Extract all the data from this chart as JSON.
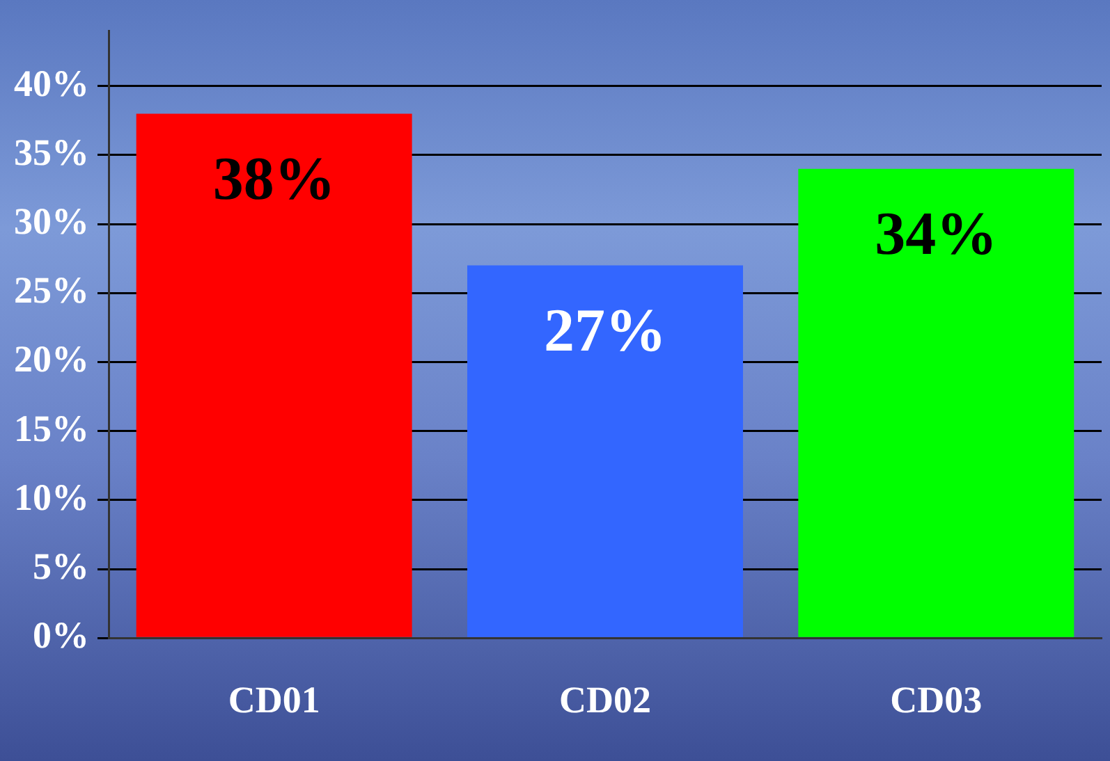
{
  "chart_data": {
    "type": "bar",
    "categories": [
      "CD01",
      "CD02",
      "CD03"
    ],
    "values": [
      38,
      27,
      34
    ],
    "colors": [
      "#ff0000",
      "#3366ff",
      "#00ff00"
    ],
    "value_labels": [
      "38%",
      "27%",
      "34%"
    ],
    "ylim": [
      0,
      44
    ],
    "yticks": [
      {
        "value": 0,
        "label": "0%"
      },
      {
        "value": 5,
        "label": "5%"
      },
      {
        "value": 10,
        "label": "10%"
      },
      {
        "value": 15,
        "label": "15%"
      },
      {
        "value": 20,
        "label": "20%"
      },
      {
        "value": 25,
        "label": "25%"
      },
      {
        "value": 30,
        "label": "30%"
      },
      {
        "value": 35,
        "label": "35%"
      },
      {
        "value": 40,
        "label": "40%"
      }
    ],
    "grid": "y",
    "legend": false
  }
}
